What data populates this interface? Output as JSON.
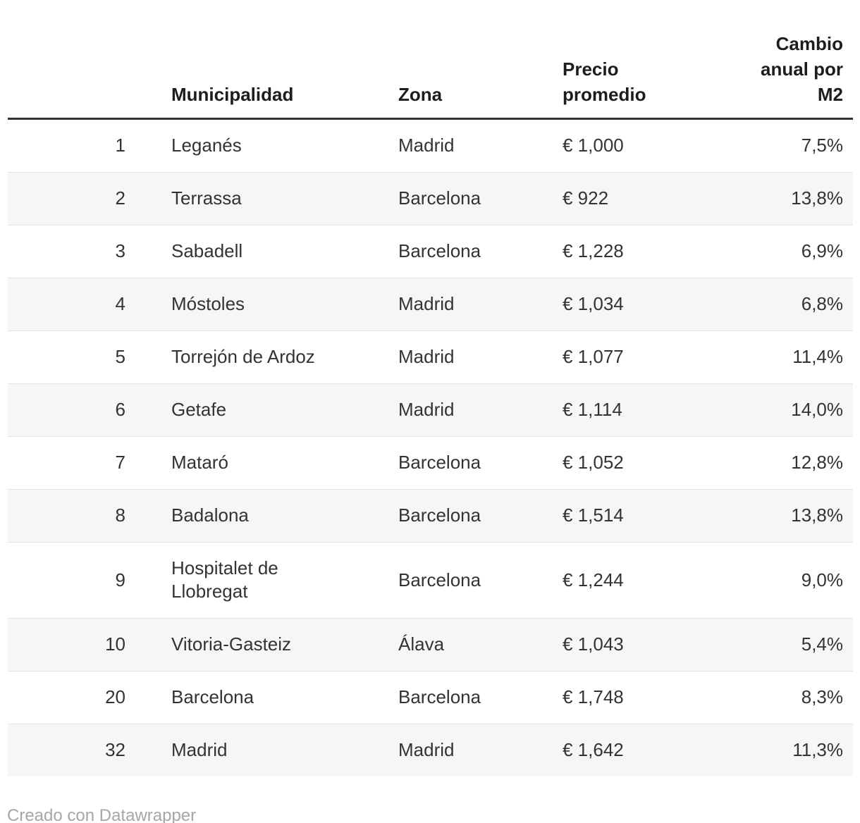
{
  "table": {
    "column_keys": [
      "rank",
      "municipality",
      "zone",
      "price",
      "change"
    ],
    "columns": [
      {
        "key": "rank",
        "label": ""
      },
      {
        "key": "municipality",
        "label": "Municipalidad"
      },
      {
        "key": "zone",
        "label": "Zona"
      },
      {
        "key": "price",
        "label": "Precio\npromedio"
      },
      {
        "key": "change",
        "label": "Cambio\nanual por\nM2"
      }
    ],
    "rows": [
      {
        "rank": "1",
        "municipality": "Leganés",
        "zone": "Madrid",
        "price": "€ 1,000",
        "change": "7,5%"
      },
      {
        "rank": "2",
        "municipality": "Terrassa",
        "zone": "Barcelona",
        "price": "€ 922",
        "change": "13,8%"
      },
      {
        "rank": "3",
        "municipality": "Sabadell",
        "zone": "Barcelona",
        "price": "€ 1,228",
        "change": "6,9%"
      },
      {
        "rank": "4",
        "municipality": "Móstoles",
        "zone": "Madrid",
        "price": "€ 1,034",
        "change": "6,8%"
      },
      {
        "rank": "5",
        "municipality": "Torrejón de Ardoz",
        "zone": "Madrid",
        "price": "€ 1,077",
        "change": "11,4%"
      },
      {
        "rank": "6",
        "municipality": "Getafe",
        "zone": "Madrid",
        "price": "€ 1,114",
        "change": "14,0%"
      },
      {
        "rank": "7",
        "municipality": "Mataró",
        "zone": "Barcelona",
        "price": "€ 1,052",
        "change": "12,8%"
      },
      {
        "rank": "8",
        "municipality": "Badalona",
        "zone": "Barcelona",
        "price": "€ 1,514",
        "change": "13,8%"
      },
      {
        "rank": "9",
        "municipality": "Hospitalet de\nLlobregat",
        "zone": "Barcelona",
        "price": "€ 1,244",
        "change": "9,0%"
      },
      {
        "rank": "10",
        "municipality": "Vitoria-Gasteiz",
        "zone": "Álava",
        "price": "€ 1,043",
        "change": "5,4%"
      },
      {
        "rank": "20",
        "municipality": "Barcelona",
        "zone": "Barcelona",
        "price": "€ 1,748",
        "change": "8,3%"
      },
      {
        "rank": "32",
        "municipality": "Madrid",
        "zone": "Madrid",
        "price": "€ 1,642",
        "change": "11,3%"
      }
    ]
  },
  "chart_data": {
    "type": "table",
    "columns": [
      "",
      "Municipalidad",
      "Zona",
      "Precio promedio",
      "Cambio anual por M2"
    ],
    "rows": [
      [
        "1",
        "Leganés",
        "Madrid",
        "€ 1,000",
        "7,5%"
      ],
      [
        "2",
        "Terrassa",
        "Barcelona",
        "€ 922",
        "13,8%"
      ],
      [
        "3",
        "Sabadell",
        "Barcelona",
        "€ 1,228",
        "6,9%"
      ],
      [
        "4",
        "Móstoles",
        "Madrid",
        "€ 1,034",
        "6,8%"
      ],
      [
        "5",
        "Torrejón de Ardoz",
        "Madrid",
        "€ 1,077",
        "11,4%"
      ],
      [
        "6",
        "Getafe",
        "Madrid",
        "€ 1,114",
        "14,0%"
      ],
      [
        "7",
        "Mataró",
        "Barcelona",
        "€ 1,052",
        "12,8%"
      ],
      [
        "8",
        "Badalona",
        "Barcelona",
        "€ 1,514",
        "13,8%"
      ],
      [
        "9",
        "Hospitalet de Llobregat",
        "Barcelona",
        "€ 1,244",
        "9,0%"
      ],
      [
        "10",
        "Vitoria-Gasteiz",
        "Álava",
        "€ 1,043",
        "5,4%"
      ],
      [
        "20",
        "Barcelona",
        "Barcelona",
        "€ 1,748",
        "8,3%"
      ],
      [
        "32",
        "Madrid",
        "Madrid",
        "€ 1,642",
        "11,3%"
      ]
    ],
    "layout_hints": {
      "striped_rows": true,
      "header_rule": "3px solid dark",
      "rank_column_align": "right",
      "change_column_align": "right"
    }
  },
  "footer": {
    "credit": "Creado con Datawrapper"
  },
  "colors": {
    "body_text": "#333333",
    "header_text": "#1d1d1d",
    "stripe": "#f6f6f6",
    "row_border": "#e4e4e4",
    "header_rule": "#333333",
    "credit_text": "#a6a6a6",
    "background": "#ffffff"
  }
}
